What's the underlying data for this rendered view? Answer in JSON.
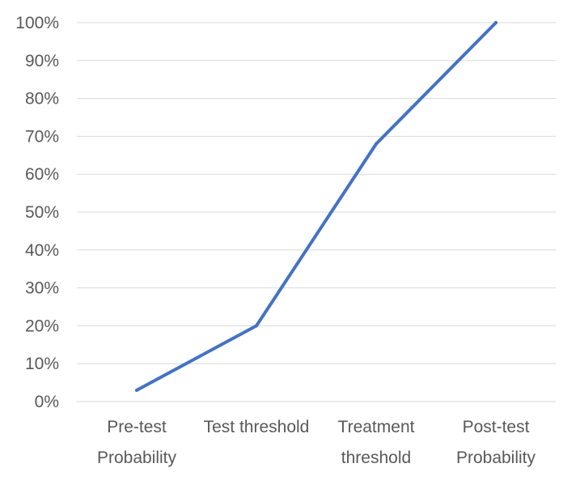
{
  "chart_data": {
    "type": "line",
    "title": "",
    "xlabel": "",
    "ylabel": "",
    "categories": [
      [
        "Pre-test",
        "Probability"
      ],
      [
        "Test threshold"
      ],
      [
        "Treatment",
        "threshold"
      ],
      [
        "Post-test",
        "Probability"
      ]
    ],
    "series": [
      {
        "values": [
          3,
          20,
          68,
          100
        ],
        "color": "#4472c4"
      }
    ],
    "ylim": [
      0,
      100
    ],
    "yticks": [
      0,
      10,
      20,
      30,
      40,
      50,
      60,
      70,
      80,
      90,
      100
    ],
    "ytick_suffix": "%",
    "grid": true,
    "legend": "none"
  }
}
